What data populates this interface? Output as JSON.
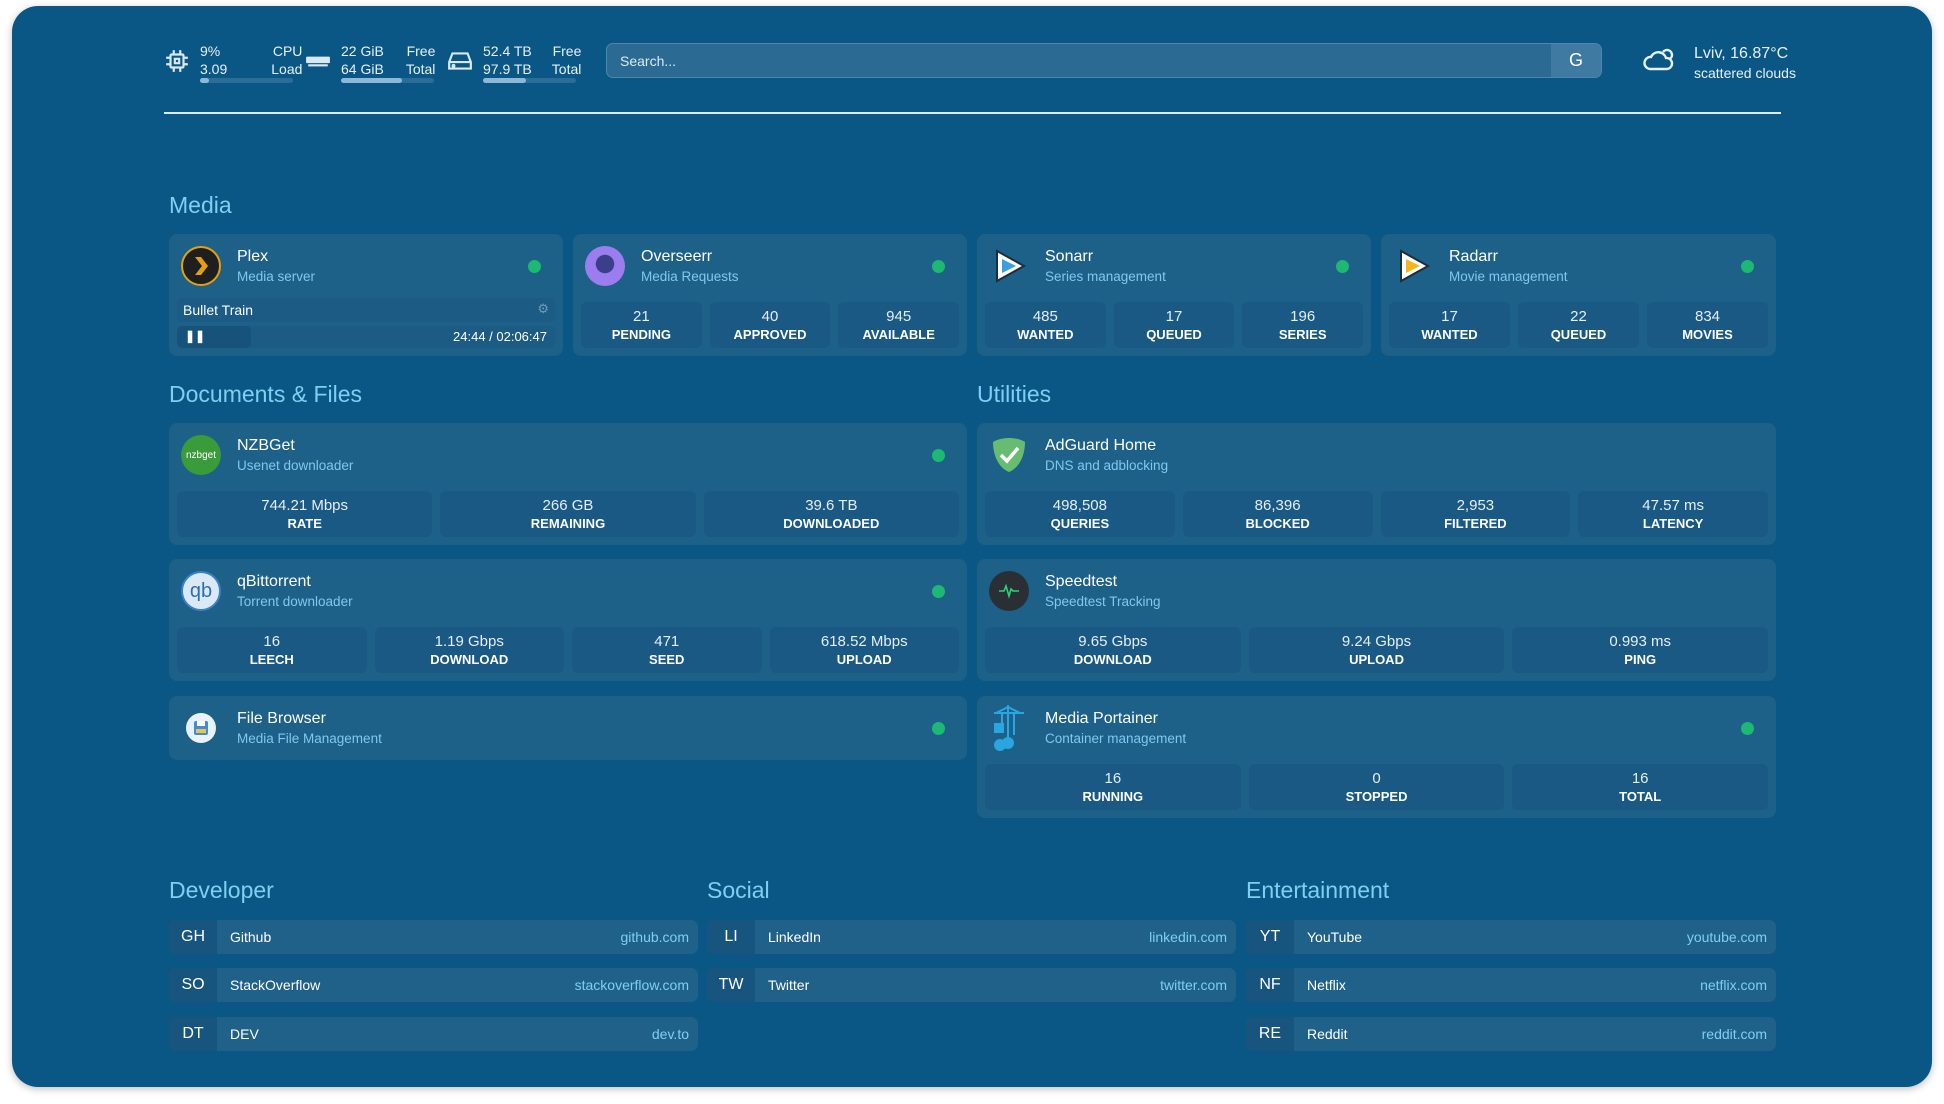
{
  "resources": {
    "cpu": {
      "icon": "cpu-icon",
      "value1": "9%",
      "label1": "CPU",
      "value2": "3.09",
      "label2": "Load",
      "usage": 0.09
    },
    "memory": {
      "icon": "memory-icon",
      "value1": "22 GiB",
      "label1": "Free",
      "value2": "64 GiB",
      "label2": "Total",
      "usage": 0.66
    },
    "disk": {
      "icon": "disk-icon",
      "value1": "52.4 TB",
      "label1": "Free",
      "value2": "97.9 TB",
      "label2": "Total",
      "usage": 0.46
    }
  },
  "search": {
    "placeholder": "Search...",
    "provider_label": "G"
  },
  "weather": {
    "icon": "cloud-sun-icon",
    "location_temp": "Lviv, 16.87°C",
    "condition": "scattered clouds"
  },
  "colors": {
    "background": "#0a5785",
    "card": "#1d6088",
    "accent": "#7fcff3",
    "status_ok": "#1db872"
  },
  "media": {
    "title": "Media",
    "plex": {
      "name": "Plex",
      "desc": "Media server",
      "now_playing": "Bullet Train",
      "time": "24:44 / 02:06:47",
      "progress": 0.195
    },
    "overseerr": {
      "name": "Overseerr",
      "desc": "Media Requests",
      "stats": [
        {
          "v": "21",
          "l": "PENDING"
        },
        {
          "v": "40",
          "l": "APPROVED"
        },
        {
          "v": "945",
          "l": "AVAILABLE"
        }
      ]
    },
    "sonarr": {
      "name": "Sonarr",
      "desc": "Series management",
      "stats": [
        {
          "v": "485",
          "l": "WANTED"
        },
        {
          "v": "17",
          "l": "QUEUED"
        },
        {
          "v": "196",
          "l": "SERIES"
        }
      ]
    },
    "radarr": {
      "name": "Radarr",
      "desc": "Movie management",
      "stats": [
        {
          "v": "17",
          "l": "WANTED"
        },
        {
          "v": "22",
          "l": "QUEUED"
        },
        {
          "v": "834",
          "l": "MOVIES"
        }
      ]
    }
  },
  "documents": {
    "title": "Documents & Files",
    "nzbget": {
      "name": "NZBGet",
      "desc": "Usenet downloader",
      "logo_text": "nzbget",
      "stats": [
        {
          "v": "744.21 Mbps",
          "l": "RATE"
        },
        {
          "v": "266 GB",
          "l": "REMAINING"
        },
        {
          "v": "39.6 TB",
          "l": "DOWNLOADED"
        }
      ]
    },
    "qbittorrent": {
      "name": "qBittorrent",
      "desc": "Torrent downloader",
      "logo_text": "qb",
      "stats": [
        {
          "v": "16",
          "l": "LEECH"
        },
        {
          "v": "1.19 Gbps",
          "l": "DOWNLOAD"
        },
        {
          "v": "471",
          "l": "SEED"
        },
        {
          "v": "618.52 Mbps",
          "l": "UPLOAD"
        }
      ]
    },
    "filebrowser": {
      "name": "File Browser",
      "desc": "Media File Management"
    }
  },
  "utilities": {
    "title": "Utilities",
    "adguard": {
      "name": "AdGuard Home",
      "desc": "DNS and adblocking",
      "stats": [
        {
          "v": "498,508",
          "l": "QUERIES"
        },
        {
          "v": "86,396",
          "l": "BLOCKED"
        },
        {
          "v": "2,953",
          "l": "FILTERED"
        },
        {
          "v": "47.57 ms",
          "l": "LATENCY"
        }
      ]
    },
    "speedtest": {
      "name": "Speedtest",
      "desc": "Speedtest Tracking",
      "stats": [
        {
          "v": "9.65 Gbps",
          "l": "DOWNLOAD"
        },
        {
          "v": "9.24 Gbps",
          "l": "UPLOAD"
        },
        {
          "v": "0.993 ms",
          "l": "PING"
        }
      ]
    },
    "portainer": {
      "name": "Media Portainer",
      "desc": "Container management",
      "stats": [
        {
          "v": "16",
          "l": "RUNNING"
        },
        {
          "v": "0",
          "l": "STOPPED"
        },
        {
          "v": "16",
          "l": "TOTAL"
        }
      ]
    }
  },
  "bookmarks": [
    {
      "title": "Developer",
      "items": [
        {
          "abbr": "GH",
          "name": "Github",
          "url": "github.com"
        },
        {
          "abbr": "SO",
          "name": "StackOverflow",
          "url": "stackoverflow.com"
        },
        {
          "abbr": "DT",
          "name": "DEV",
          "url": "dev.to"
        }
      ]
    },
    {
      "title": "Social",
      "items": [
        {
          "abbr": "LI",
          "name": "LinkedIn",
          "url": "linkedin.com"
        },
        {
          "abbr": "TW",
          "name": "Twitter",
          "url": "twitter.com"
        }
      ]
    },
    {
      "title": "Entertainment",
      "items": [
        {
          "abbr": "YT",
          "name": "YouTube",
          "url": "youtube.com"
        },
        {
          "abbr": "NF",
          "name": "Netflix",
          "url": "netflix.com"
        },
        {
          "abbr": "RE",
          "name": "Reddit",
          "url": "reddit.com"
        }
      ]
    }
  ]
}
